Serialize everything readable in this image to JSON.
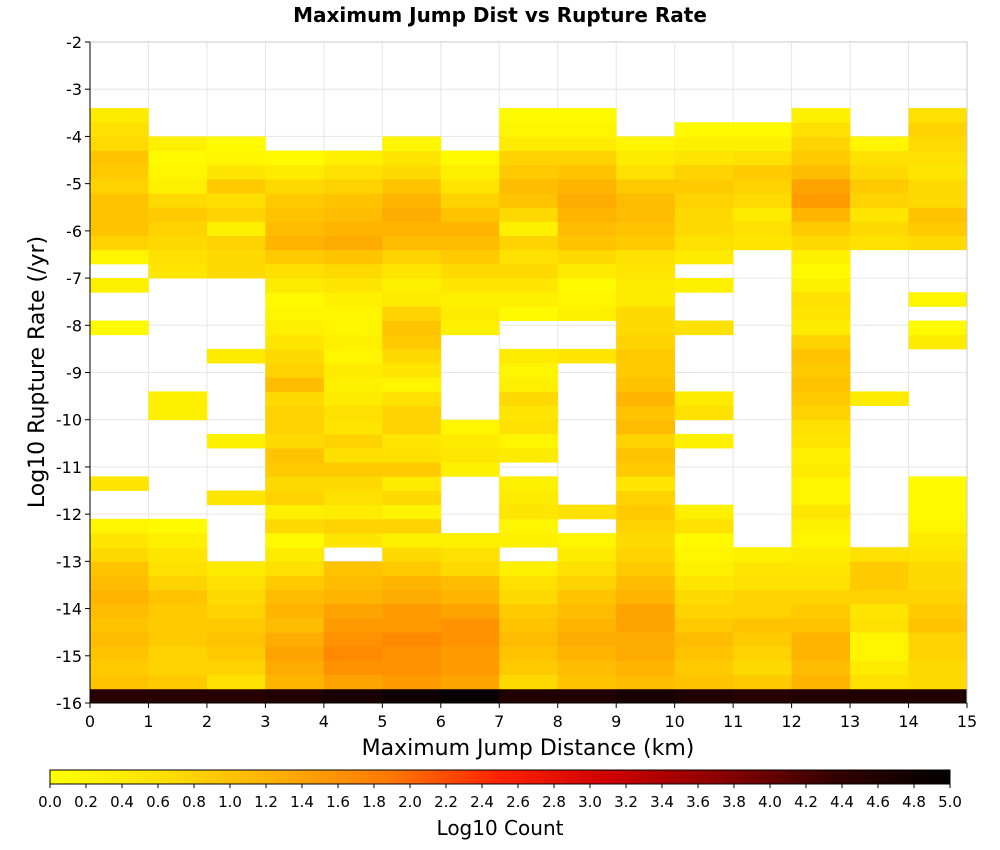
{
  "colors": {
    "background": "#ffffff",
    "grid": "#e6e6e6",
    "colormap": [
      "#ffff00",
      "#ffe000",
      "#ffb000",
      "#ff7a00",
      "#ff2200",
      "#cc0000",
      "#880000",
      "#330000",
      "#000000"
    ]
  },
  "chart_data": {
    "type": "heatmap",
    "title": "Maximum Jump Dist vs Rupture Rate",
    "xlabel": "Maximum Jump Distance (km)",
    "ylabel": "Log10 Rupture Rate (/yr)",
    "xlim": [
      0,
      15
    ],
    "ylim": [
      -16,
      -2
    ],
    "x_ticks": [
      "0",
      "1",
      "2",
      "3",
      "4",
      "5",
      "6",
      "7",
      "8",
      "9",
      "10",
      "11",
      "12",
      "13",
      "14",
      "15"
    ],
    "y_ticks": [
      "-2",
      "-3",
      "-4",
      "-5",
      "-6",
      "-7",
      "-8",
      "-9",
      "-10",
      "-11",
      "-12",
      "-13",
      "-14",
      "-15",
      "-16"
    ],
    "grid": true,
    "x_bins": [
      0,
      1,
      2,
      3,
      4,
      5,
      6,
      7,
      8,
      9,
      10,
      11,
      12,
      13,
      14
    ],
    "x_bin_width": 1,
    "y_bin_height": 0.3,
    "y_bins_from": -16.0,
    "y_bins_count": 42,
    "z_unit_note": "values are Log10 Count, one array per x bin, ordered from y=-16.0 upward in 0.3 steps; null = empty",
    "z": [
      [
        4.5,
        1.0,
        0.9,
        1.0,
        1.1,
        1.0,
        1.1,
        1.2,
        1.1,
        1.0,
        0.7,
        0.5,
        0.2,
        null,
        null,
        0.5,
        null,
        null,
        null,
        null,
        null,
        null,
        null,
        null,
        null,
        null,
        0.1,
        null,
        null,
        0.3,
        null,
        0.2,
        0.8,
        1.0,
        1.0,
        1.0,
        0.8,
        0.9,
        1.0,
        0.7,
        0.6,
        0.4
      ],
      [
        4.5,
        0.9,
        0.8,
        0.8,
        0.9,
        0.9,
        0.9,
        1.0,
        0.8,
        0.6,
        0.5,
        0.3,
        0.1,
        null,
        null,
        null,
        null,
        null,
        null,
        null,
        0.3,
        0.3,
        null,
        null,
        null,
        null,
        null,
        null,
        null,
        null,
        0.5,
        0.6,
        0.7,
        0.8,
        0.9,
        0.7,
        0.3,
        0.2,
        0.1,
        0.3,
        null,
        null
      ],
      [
        4.5,
        0.6,
        0.8,
        0.9,
        1.0,
        0.9,
        0.8,
        0.7,
        0.6,
        0.4,
        null,
        null,
        null,
        null,
        0.5,
        null,
        null,
        null,
        0.3,
        null,
        null,
        null,
        null,
        null,
        0.4,
        null,
        null,
        null,
        null,
        null,
        0.7,
        0.7,
        0.8,
        0.3,
        0.8,
        0.6,
        0.9,
        0.5,
        0.2,
        0.1,
        null,
        null
      ],
      [
        4.6,
        1.2,
        1.3,
        1.4,
        1.3,
        1.1,
        1.2,
        1.1,
        0.9,
        0.6,
        0.4,
        0.1,
        0.7,
        0.3,
        0.8,
        0.7,
        0.9,
        1.0,
        0.7,
        0.8,
        0.8,
        0.7,
        1.1,
        0.8,
        0.7,
        0.5,
        0.3,
        0.2,
        0.1,
        0.4,
        0.6,
        0.9,
        1.2,
        1.1,
        1.0,
        0.9,
        0.7,
        0.4,
        0.1,
        null,
        null,
        null
      ],
      [
        4.7,
        1.4,
        1.6,
        1.7,
        1.6,
        1.5,
        1.4,
        1.2,
        1.1,
        1.0,
        null,
        0.5,
        0.8,
        0.4,
        0.6,
        0.7,
        0.9,
        0.6,
        0.8,
        0.5,
        0.6,
        0.4,
        0.3,
        0.4,
        0.2,
        0.3,
        0.2,
        0.2,
        0.3,
        0.5,
        0.7,
        1.0,
        1.3,
        1.2,
        1.1,
        1.0,
        0.8,
        0.6,
        0.3,
        null,
        null,
        null
      ],
      [
        4.8,
        1.5,
        1.6,
        1.6,
        1.7,
        1.5,
        1.5,
        1.3,
        1.2,
        0.9,
        0.7,
        0.3,
        0.8,
        0.2,
        0.7,
        0.4,
        0.9,
        0.6,
        0.5,
        0.8,
        0.8,
        0.6,
        0.2,
        0.5,
        0.7,
        0.9,
        1.0,
        0.8,
        0.4,
        0.3,
        0.5,
        0.8,
        1.1,
        1.2,
        1.3,
        1.2,
        1.0,
        0.7,
        0.5,
        0.2,
        null,
        null
      ],
      [
        4.9,
        1.4,
        1.5,
        1.5,
        1.6,
        1.6,
        1.4,
        1.2,
        1.1,
        0.7,
        0.6,
        0.3,
        null,
        null,
        null,
        null,
        0.3,
        0.5,
        0.4,
        0.2,
        null,
        null,
        null,
        null,
        null,
        null,
        0.3,
        0.4,
        0.3,
        0.5,
        0.7,
        0.9,
        1.1,
        1.2,
        1.0,
        0.8,
        0.5,
        0.3,
        0.1,
        null,
        null,
        null
      ],
      [
        4.6,
        0.7,
        0.9,
        1.0,
        1.1,
        1.0,
        0.9,
        0.7,
        0.6,
        0.3,
        null,
        0.3,
        0.2,
        0.5,
        0.4,
        0.3,
        null,
        0.4,
        0.2,
        0.6,
        0.5,
        0.7,
        0.3,
        0.2,
        0.4,
        null,
        null,
        0.1,
        0.3,
        0.5,
        0.7,
        0.6,
        0.8,
        0.3,
        0.7,
        1.0,
        1.1,
        0.9,
        0.8,
        0.4,
        0.2,
        0.1
      ],
      [
        4.6,
        1.0,
        1.1,
        1.2,
        1.3,
        1.2,
        1.1,
        1.0,
        0.8,
        0.6,
        0.4,
        0.2,
        null,
        0.6,
        null,
        null,
        null,
        null,
        null,
        null,
        null,
        null,
        null,
        null,
        0.5,
        null,
        null,
        0.3,
        0.2,
        0.1,
        0.4,
        0.7,
        1.0,
        1.1,
        1.2,
        1.3,
        1.2,
        1.0,
        0.8,
        0.4,
        0.2,
        0.1
      ],
      [
        4.7,
        1.1,
        1.2,
        1.3,
        1.3,
        1.4,
        1.4,
        1.2,
        1.1,
        0.9,
        0.8,
        0.7,
        0.8,
        0.9,
        0.8,
        0.5,
        0.9,
        1.0,
        0.8,
        1.1,
        1.0,
        1.2,
        1.0,
        0.9,
        0.9,
        0.8,
        0.7,
        0.7,
        0.4,
        0.4,
        0.5,
        0.6,
        0.9,
        1.0,
        1.1,
        1.1,
        0.9,
        0.6,
        0.4,
        0.2,
        null,
        null
      ],
      [
        4.6,
        1.0,
        0.9,
        1.0,
        1.1,
        0.9,
        0.8,
        0.7,
        0.5,
        0.3,
        0.2,
        0.1,
        0.6,
        0.3,
        null,
        null,
        null,
        null,
        0.3,
        null,
        0.6,
        0.4,
        null,
        null,
        null,
        null,
        0.6,
        null,
        null,
        0.3,
        null,
        0.4,
        0.6,
        0.7,
        0.7,
        0.8,
        0.9,
        0.8,
        0.5,
        0.3,
        0.1,
        null
      ],
      [
        4.5,
        0.9,
        0.7,
        0.8,
        0.9,
        1.0,
        0.8,
        0.8,
        0.6,
        0.5,
        0.3,
        null,
        null,
        null,
        null,
        null,
        null,
        null,
        null,
        null,
        null,
        null,
        null,
        null,
        null,
        null,
        null,
        null,
        null,
        null,
        null,
        null,
        0.5,
        0.6,
        0.4,
        0.7,
        0.8,
        0.9,
        0.6,
        0.3,
        0.1,
        null
      ],
      [
        4.6,
        1.2,
        1.1,
        1.2,
        1.2,
        1.0,
        0.9,
        0.8,
        0.6,
        0.5,
        0.4,
        0.2,
        0.3,
        0.5,
        0.2,
        0.2,
        0.4,
        0.3,
        0.5,
        0.6,
        0.8,
        0.9,
        1.0,
        0.9,
        1.0,
        0.8,
        0.4,
        0.5,
        0.6,
        0.3,
        0.1,
        0.3,
        0.7,
        0.9,
        1.2,
        1.5,
        1.4,
        1.1,
        0.9,
        0.8,
        0.6,
        0.3
      ],
      [
        4.6,
        0.6,
        0.4,
        0.2,
        0.2,
        0.6,
        0.5,
        0.8,
        0.9,
        0.9,
        0.6,
        null,
        null,
        null,
        null,
        null,
        null,
        null,
        null,
        null,
        null,
        0.4,
        null,
        null,
        null,
        null,
        null,
        null,
        null,
        null,
        null,
        null,
        0.6,
        0.7,
        0.5,
        0.8,
        0.9,
        0.7,
        0.6,
        0.2,
        null,
        null
      ],
      [
        4.6,
        0.7,
        0.7,
        0.8,
        0.8,
        1.0,
        0.9,
        0.8,
        0.7,
        0.7,
        0.5,
        0.4,
        0.2,
        0.1,
        0.1,
        0.1,
        null,
        null,
        null,
        null,
        null,
        null,
        null,
        null,
        null,
        0.4,
        0.1,
        null,
        0.2,
        null,
        null,
        null,
        0.7,
        0.9,
        1.0,
        0.7,
        0.7,
        0.5,
        0.6,
        0.7,
        0.8,
        0.6
      ]
    ],
    "colorbar": {
      "label": "Log10 Count",
      "range": [
        0,
        5
      ],
      "ticks": [
        "0.0",
        "0.2",
        "0.4",
        "0.6",
        "0.8",
        "1.0",
        "1.2",
        "1.4",
        "1.6",
        "1.8",
        "2.0",
        "2.2",
        "2.4",
        "2.6",
        "2.8",
        "3.0",
        "3.2",
        "3.4",
        "3.6",
        "3.8",
        "4.0",
        "4.2",
        "4.4",
        "4.6",
        "4.8",
        "5.0"
      ]
    }
  }
}
